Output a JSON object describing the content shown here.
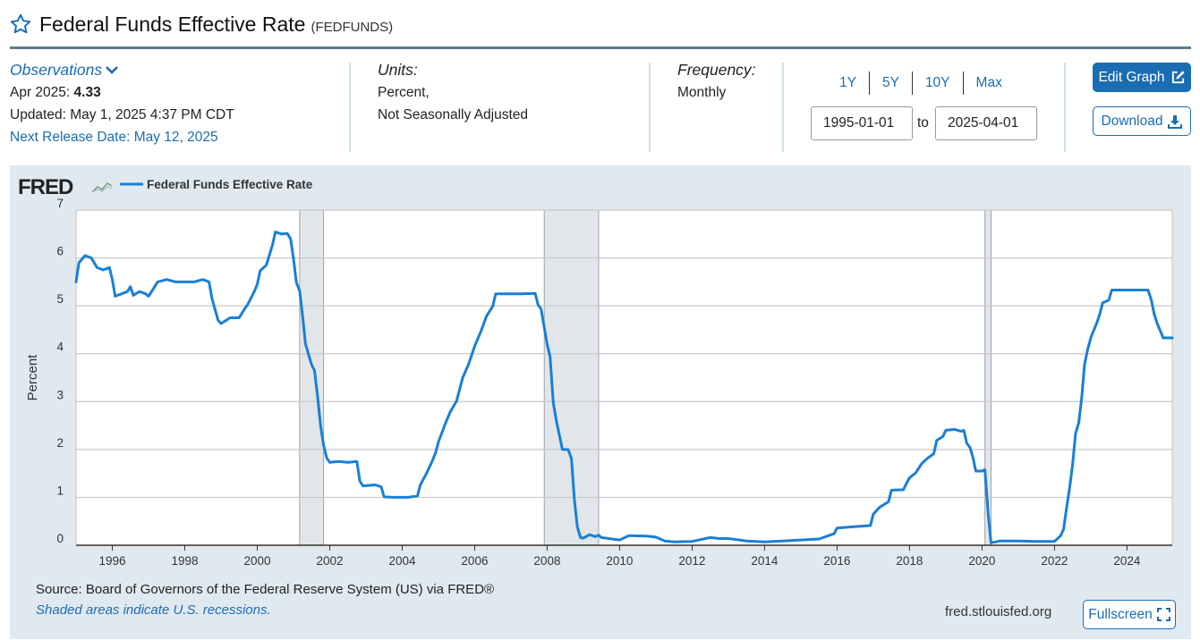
{
  "header": {
    "title": "Federal Funds Effective Rate",
    "series_id": "(FEDFUNDS)"
  },
  "observations": {
    "label": "Observations",
    "latest_period": "Apr 2025:",
    "latest_value": "4.33",
    "updated": "Updated: May 1, 2025 4:37 PM CDT",
    "next_release": "Next Release Date: May 12, 2025"
  },
  "units": {
    "label": "Units:",
    "line1": "Percent,",
    "line2": "Not Seasonally Adjusted"
  },
  "frequency": {
    "label": "Frequency:",
    "value": "Monthly"
  },
  "range": {
    "buttons": [
      "1Y",
      "5Y",
      "10Y",
      "Max"
    ],
    "start": "1995-01-01",
    "to_label": "to",
    "end": "2025-04-01"
  },
  "actions": {
    "edit_graph": "Edit Graph",
    "download": "Download",
    "fullscreen": "Fullscreen"
  },
  "footer": {
    "source": "Source: Board of Governors of the Federal Reserve System (US) via FRED®",
    "shaded_note": "Shaded areas indicate U.S. recessions.",
    "site": "fred.stlouisfed.org"
  },
  "colors": {
    "accent": "#1a6db3",
    "series_line": "#1a7fd4",
    "panel_bg": "#e1e9f0",
    "recession": "#e2e6ea"
  },
  "chart_data": {
    "type": "line",
    "logo": "FRED",
    "legend": [
      "Federal Funds Effective Rate"
    ],
    "legend_position": "top-left",
    "ylabel": "Percent",
    "xlabel": "",
    "xlim": [
      1995.0,
      2025.25
    ],
    "ylim": [
      0,
      7
    ],
    "yticks": [
      0,
      1,
      2,
      3,
      4,
      5,
      6,
      7
    ],
    "xticks": [
      "1996",
      "1998",
      "2000",
      "2002",
      "2004",
      "2006",
      "2008",
      "2010",
      "2012",
      "2014",
      "2016",
      "2018",
      "2020",
      "2022",
      "2024"
    ],
    "grid": true,
    "recessions": [
      [
        2001.17,
        2001.83
      ],
      [
        2007.92,
        2009.42
      ],
      [
        2020.08,
        2020.25
      ]
    ],
    "series": [
      {
        "name": "Federal Funds Effective Rate",
        "points": [
          [
            1995.0,
            5.5
          ],
          [
            1995.08,
            5.9
          ],
          [
            1995.25,
            6.05
          ],
          [
            1995.42,
            6.0
          ],
          [
            1995.58,
            5.8
          ],
          [
            1995.75,
            5.75
          ],
          [
            1995.92,
            5.8
          ],
          [
            1996.0,
            5.55
          ],
          [
            1996.08,
            5.2
          ],
          [
            1996.25,
            5.25
          ],
          [
            1996.42,
            5.3
          ],
          [
            1996.5,
            5.4
          ],
          [
            1996.58,
            5.22
          ],
          [
            1996.75,
            5.3
          ],
          [
            1996.92,
            5.25
          ],
          [
            1997.0,
            5.2
          ],
          [
            1997.17,
            5.4
          ],
          [
            1997.25,
            5.5
          ],
          [
            1997.5,
            5.55
          ],
          [
            1997.75,
            5.5
          ],
          [
            1998.0,
            5.5
          ],
          [
            1998.25,
            5.5
          ],
          [
            1998.5,
            5.55
          ],
          [
            1998.67,
            5.5
          ],
          [
            1998.75,
            5.15
          ],
          [
            1998.92,
            4.7
          ],
          [
            1999.0,
            4.63
          ],
          [
            1999.25,
            4.75
          ],
          [
            1999.5,
            4.75
          ],
          [
            1999.58,
            4.85
          ],
          [
            1999.75,
            5.05
          ],
          [
            1999.92,
            5.3
          ],
          [
            2000.0,
            5.45
          ],
          [
            2000.08,
            5.73
          ],
          [
            2000.25,
            5.85
          ],
          [
            2000.42,
            6.27
          ],
          [
            2000.5,
            6.54
          ],
          [
            2000.67,
            6.5
          ],
          [
            2000.83,
            6.51
          ],
          [
            2000.92,
            6.4
          ],
          [
            2001.0,
            5.98
          ],
          [
            2001.08,
            5.49
          ],
          [
            2001.17,
            5.31
          ],
          [
            2001.25,
            4.8
          ],
          [
            2001.33,
            4.21
          ],
          [
            2001.42,
            3.97
          ],
          [
            2001.5,
            3.77
          ],
          [
            2001.58,
            3.65
          ],
          [
            2001.67,
            3.07
          ],
          [
            2001.75,
            2.49
          ],
          [
            2001.83,
            2.09
          ],
          [
            2001.92,
            1.82
          ],
          [
            2002.0,
            1.73
          ],
          [
            2002.25,
            1.75
          ],
          [
            2002.5,
            1.73
          ],
          [
            2002.75,
            1.75
          ],
          [
            2002.83,
            1.34
          ],
          [
            2002.92,
            1.24
          ],
          [
            2003.25,
            1.26
          ],
          [
            2003.42,
            1.22
          ],
          [
            2003.5,
            1.01
          ],
          [
            2003.75,
            1.0
          ],
          [
            2004.0,
            1.0
          ],
          [
            2004.17,
            1.0
          ],
          [
            2004.42,
            1.03
          ],
          [
            2004.5,
            1.26
          ],
          [
            2004.67,
            1.5
          ],
          [
            2004.83,
            1.76
          ],
          [
            2004.92,
            1.93
          ],
          [
            2005.0,
            2.16
          ],
          [
            2005.17,
            2.5
          ],
          [
            2005.33,
            2.79
          ],
          [
            2005.5,
            3.01
          ],
          [
            2005.67,
            3.5
          ],
          [
            2005.83,
            3.78
          ],
          [
            2006.0,
            4.16
          ],
          [
            2006.17,
            4.46
          ],
          [
            2006.33,
            4.79
          ],
          [
            2006.5,
            4.99
          ],
          [
            2006.58,
            5.25
          ],
          [
            2007.0,
            5.25
          ],
          [
            2007.25,
            5.25
          ],
          [
            2007.67,
            5.26
          ],
          [
            2007.75,
            5.02
          ],
          [
            2007.83,
            4.94
          ],
          [
            2008.0,
            4.2
          ],
          [
            2008.08,
            3.94
          ],
          [
            2008.17,
            2.98
          ],
          [
            2008.25,
            2.61
          ],
          [
            2008.42,
            2.0
          ],
          [
            2008.58,
            2.0
          ],
          [
            2008.67,
            1.81
          ],
          [
            2008.75,
            0.97
          ],
          [
            2008.83,
            0.39
          ],
          [
            2008.92,
            0.16
          ],
          [
            2009.0,
            0.15
          ],
          [
            2009.17,
            0.22
          ],
          [
            2009.33,
            0.18
          ],
          [
            2009.42,
            0.21
          ],
          [
            2009.5,
            0.16
          ],
          [
            2010.0,
            0.11
          ],
          [
            2010.25,
            0.2
          ],
          [
            2010.75,
            0.19
          ],
          [
            2011.0,
            0.17
          ],
          [
            2011.25,
            0.09
          ],
          [
            2011.5,
            0.07
          ],
          [
            2012.0,
            0.08
          ],
          [
            2012.5,
            0.16
          ],
          [
            2012.75,
            0.14
          ],
          [
            2013.0,
            0.14
          ],
          [
            2013.5,
            0.09
          ],
          [
            2014.0,
            0.07
          ],
          [
            2014.5,
            0.09
          ],
          [
            2015.0,
            0.11
          ],
          [
            2015.5,
            0.13
          ],
          [
            2015.92,
            0.24
          ],
          [
            2016.0,
            0.36
          ],
          [
            2016.5,
            0.39
          ],
          [
            2016.92,
            0.41
          ],
          [
            2017.0,
            0.65
          ],
          [
            2017.17,
            0.79
          ],
          [
            2017.42,
            0.91
          ],
          [
            2017.5,
            1.15
          ],
          [
            2017.83,
            1.16
          ],
          [
            2017.92,
            1.3
          ],
          [
            2018.0,
            1.41
          ],
          [
            2018.17,
            1.51
          ],
          [
            2018.33,
            1.7
          ],
          [
            2018.5,
            1.82
          ],
          [
            2018.67,
            1.91
          ],
          [
            2018.75,
            2.19
          ],
          [
            2018.92,
            2.27
          ],
          [
            2019.0,
            2.4
          ],
          [
            2019.25,
            2.42
          ],
          [
            2019.42,
            2.38
          ],
          [
            2019.5,
            2.4
          ],
          [
            2019.58,
            2.13
          ],
          [
            2019.67,
            2.04
          ],
          [
            2019.75,
            1.83
          ],
          [
            2019.83,
            1.55
          ],
          [
            2020.0,
            1.55
          ],
          [
            2020.08,
            1.58
          ],
          [
            2020.17,
            0.65
          ],
          [
            2020.25,
            0.05
          ],
          [
            2020.5,
            0.09
          ],
          [
            2021.0,
            0.09
          ],
          [
            2021.5,
            0.08
          ],
          [
            2021.75,
            0.08
          ],
          [
            2022.0,
            0.08
          ],
          [
            2022.17,
            0.2
          ],
          [
            2022.25,
            0.33
          ],
          [
            2022.33,
            0.77
          ],
          [
            2022.42,
            1.21
          ],
          [
            2022.5,
            1.68
          ],
          [
            2022.58,
            2.33
          ],
          [
            2022.67,
            2.56
          ],
          [
            2022.75,
            3.08
          ],
          [
            2022.83,
            3.78
          ],
          [
            2022.92,
            4.1
          ],
          [
            2023.0,
            4.33
          ],
          [
            2023.17,
            4.65
          ],
          [
            2023.25,
            4.83
          ],
          [
            2023.33,
            5.06
          ],
          [
            2023.5,
            5.12
          ],
          [
            2023.58,
            5.33
          ],
          [
            2024.5,
            5.33
          ],
          [
            2024.58,
            5.33
          ],
          [
            2024.67,
            5.13
          ],
          [
            2024.75,
            4.83
          ],
          [
            2024.83,
            4.64
          ],
          [
            2024.92,
            4.48
          ],
          [
            2025.0,
            4.33
          ],
          [
            2025.25,
            4.33
          ]
        ]
      }
    ]
  }
}
